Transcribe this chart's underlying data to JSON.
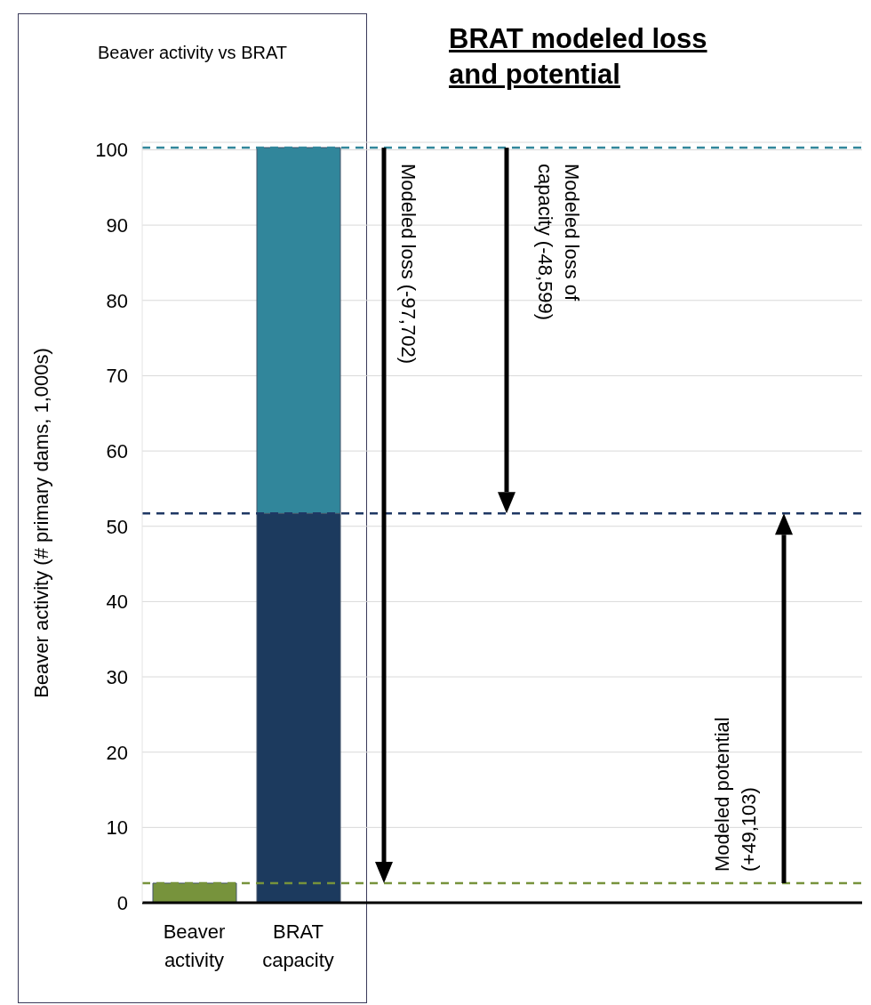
{
  "chart_data": {
    "type": "bar",
    "title": "BRAT modeled loss and potential",
    "subtitle": "Beaver activity vs BRAT",
    "ylabel": "Beaver activity (# primary dams, 1,000s)",
    "categories": [
      "Beaver activity",
      "BRAT capacity"
    ],
    "series": [
      {
        "colors": [
          "#77933c",
          "#1c3a5e"
        ],
        "values": [
          2.6,
          51.7
        ]
      },
      {
        "color": "#31869b",
        "values": [
          null,
          48.6
        ]
      }
    ],
    "stacked": true,
    "ylim": [
      0,
      101
    ],
    "yticks": [
      0,
      10,
      20,
      30,
      40,
      50,
      60,
      70,
      80,
      90,
      100
    ],
    "grid": "y",
    "legend": false,
    "ref_lines": [
      {
        "axis": "y",
        "value": 100.3,
        "color": "#31869b",
        "line_style": "dashed"
      },
      {
        "axis": "y",
        "value": 51.7,
        "color": "#1f3864",
        "line_style": "dashed"
      },
      {
        "axis": "y",
        "value": 2.6,
        "color": "#77933c",
        "line_style": "dashed"
      }
    ],
    "annotations": [
      "Modeled loss (-97,702)",
      "Modeled loss of capacity (-48,599)",
      "Modeled potential (+49,103)"
    ]
  }
}
